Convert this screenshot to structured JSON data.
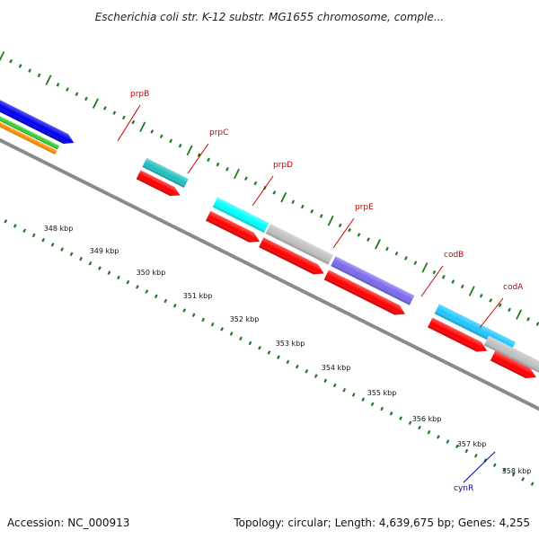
{
  "title": "Escherichia coli str. K-12 substr. MG1655 chromosome, comple...",
  "footer": {
    "accession": "Accession: NC_000913",
    "topology": "Topology: circular; Length: 4,639,675 bp; Genes: 4,255"
  },
  "scale_labels": [
    "348 kbp",
    "349 kbp",
    "350 kbp",
    "351 kbp",
    "352 kbp",
    "353 kbp",
    "354 kbp",
    "355 kbp",
    "356 kbp",
    "357 kbp",
    "358 kbp"
  ],
  "gene_labels": [
    {
      "name": "prpB",
      "color": "#cc0000"
    },
    {
      "name": "prpC",
      "color": "#cc0000"
    },
    {
      "name": "prpD",
      "color": "#cc0000"
    },
    {
      "name": "prpE",
      "color": "#cc0000"
    },
    {
      "name": "codB",
      "color": "#cc0000"
    },
    {
      "name": "codA",
      "color": "#cc0000"
    },
    {
      "name": "cynR",
      "color": "#0000aa"
    }
  ],
  "colors": {
    "backbone": "#8a8a8a",
    "tick": "#1f7a1f",
    "cds": "#ff0000",
    "blue": "#0000ee",
    "teal": "#20c0c0",
    "cyan": "#00ffff",
    "grey": "#c0c0c0",
    "purple": "#7b68ee",
    "skyblue": "#1ec8ff",
    "green": "#33cc33",
    "orange": "#ff8c00"
  }
}
